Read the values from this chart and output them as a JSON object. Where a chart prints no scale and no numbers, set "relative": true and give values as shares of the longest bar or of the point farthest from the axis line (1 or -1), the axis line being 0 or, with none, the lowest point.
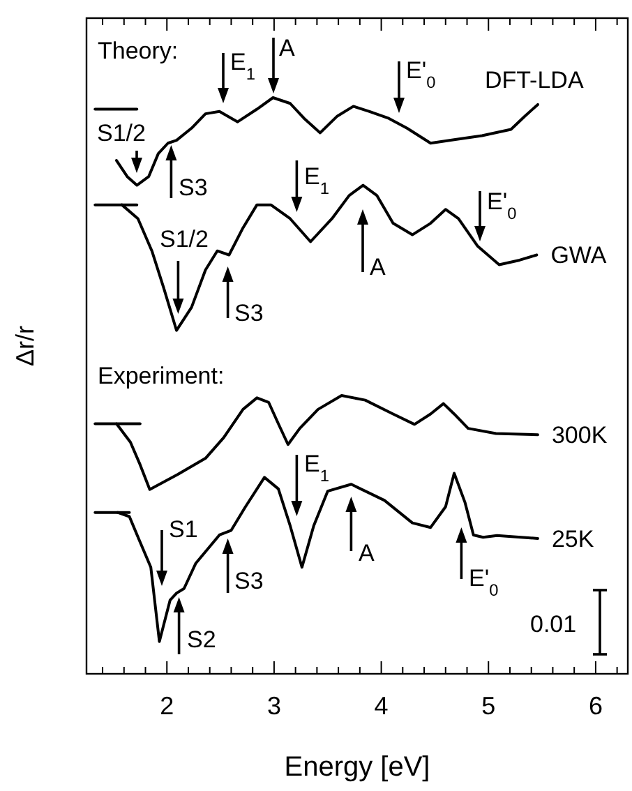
{
  "chart_data": {
    "type": "line",
    "relative": true,
    "xlabel": "Energy [eV]",
    "ylabel": "Δr/r",
    "xlim": [
      1.25,
      6.3
    ],
    "xticks": [
      {
        "value": 1.4,
        "label": null
      },
      {
        "value": 1.6,
        "label": null
      },
      {
        "value": 1.8,
        "label": null
      },
      2,
      {
        "value": 2.2,
        "label": null
      },
      {
        "value": 2.4,
        "label": null
      },
      {
        "value": 2.6,
        "label": null
      },
      {
        "value": 2.8,
        "label": null
      },
      3,
      {
        "value": 3.2,
        "label": null
      },
      {
        "value": 3.4,
        "label": null
      },
      {
        "value": 3.6,
        "label": null
      },
      {
        "value": 3.8,
        "label": null
      },
      4,
      {
        "value": 4.2,
        "label": null
      },
      {
        "value": 4.4,
        "label": null
      },
      {
        "value": 4.6,
        "label": null
      },
      {
        "value": 4.8,
        "label": null
      },
      5,
      {
        "value": 5.2,
        "label": null
      },
      {
        "value": 5.4,
        "label": null
      },
      {
        "value": 5.6,
        "label": null
      },
      {
        "value": 5.8,
        "label": null
      },
      6,
      {
        "value": 6.2,
        "label": null
      }
    ],
    "tick_labels": "x",
    "series": [
      {
        "name": "DFT-LDA",
        "color": "#000000",
        "x": [
          1.53,
          1.63,
          1.72,
          1.83,
          1.92,
          2.01,
          2.09,
          2.23,
          2.36,
          2.49,
          2.66,
          2.84,
          2.99,
          3.15,
          3.28,
          3.43,
          3.59,
          3.74,
          3.89,
          4.07,
          4.24,
          4.46,
          4.68,
          4.94,
          5.21,
          5.34,
          5.46
        ],
        "values": [
          0.891,
          0.863,
          0.848,
          0.863,
          0.903,
          0.921,
          0.926,
          0.947,
          0.972,
          0.976,
          0.958,
          0.98,
          1.0,
          0.99,
          0.964,
          0.939,
          0.968,
          0.985,
          0.976,
          0.964,
          0.947,
          0.921,
          0.927,
          0.934,
          0.945,
          0.968,
          0.988
        ]
      },
      {
        "name": "GWA",
        "color": "#000000",
        "x": [
          1.58,
          1.73,
          1.86,
          1.97,
          2.09,
          2.23,
          2.36,
          2.47,
          2.58,
          2.71,
          2.84,
          2.97,
          3.15,
          3.34,
          3.54,
          3.7,
          3.83,
          3.96,
          4.11,
          4.29,
          4.46,
          4.6,
          4.72,
          4.9,
          5.1,
          5.29,
          5.45
        ],
        "values": [
          0.814,
          0.79,
          0.734,
          0.67,
          0.596,
          0.636,
          0.701,
          0.734,
          0.727,
          0.774,
          0.814,
          0.814,
          0.79,
          0.75,
          0.79,
          0.83,
          0.848,
          0.83,
          0.782,
          0.762,
          0.782,
          0.806,
          0.79,
          0.742,
          0.71,
          0.718,
          0.727
        ]
      },
      {
        "name": "300K",
        "color": "#000000",
        "x": [
          1.53,
          1.66,
          1.75,
          1.84,
          2.1,
          2.36,
          2.53,
          2.71,
          2.84,
          2.95,
          3.04,
          3.13,
          3.24,
          3.41,
          3.63,
          3.85,
          4.11,
          4.31,
          4.46,
          4.58,
          4.68,
          4.81,
          5.07,
          5.46
        ],
        "values": [
          0.434,
          0.402,
          0.363,
          0.32,
          0.346,
          0.374,
          0.41,
          0.459,
          0.479,
          0.471,
          0.434,
          0.398,
          0.426,
          0.459,
          0.483,
          0.475,
          0.451,
          0.433,
          0.451,
          0.469,
          0.451,
          0.426,
          0.417,
          0.415
        ]
      },
      {
        "name": "25K",
        "color": "#000000",
        "x": [
          1.54,
          1.65,
          1.74,
          1.85,
          1.93,
          2.03,
          2.09,
          2.16,
          2.27,
          2.49,
          2.6,
          2.73,
          2.91,
          3.04,
          3.15,
          3.26,
          3.37,
          3.5,
          3.72,
          4.03,
          4.29,
          4.46,
          4.6,
          4.68,
          4.78,
          4.86,
          4.95,
          5.08,
          5.46
        ],
        "values": [
          0.28,
          0.273,
          0.233,
          0.185,
          0.056,
          0.128,
          0.14,
          0.148,
          0.192,
          0.241,
          0.249,
          0.289,
          0.341,
          0.321,
          0.257,
          0.185,
          0.257,
          0.317,
          0.329,
          0.301,
          0.262,
          0.254,
          0.29,
          0.348,
          0.298,
          0.241,
          0.237,
          0.24,
          0.235
        ]
      },
      {
        "color": "#000000",
        "x": [
          1.33,
          1.72
        ],
        "values": [
          0.98,
          0.98
        ]
      },
      {
        "color": "#000000",
        "x": [
          1.33,
          1.72
        ],
        "values": [
          0.814,
          0.814
        ]
      },
      {
        "color": "#000000",
        "x": [
          1.33,
          1.75
        ],
        "values": [
          0.434,
          0.434
        ]
      },
      {
        "color": "#000000",
        "x": [
          1.33,
          1.65
        ],
        "values": [
          0.28,
          0.28
        ]
      }
    ],
    "annotations": [
      "Theory:",
      "Experiment:",
      "0.01",
      "S1/2",
      "S3",
      "E$_{1}$",
      "A",
      "E'$_{0}$",
      "S1/2",
      "S3",
      "E$_{1}$",
      "A",
      "E'$_{0}$",
      "S1",
      "S2",
      "S3",
      "E$_{1}$",
      "A",
      "E'$_{0}$"
    ]
  }
}
